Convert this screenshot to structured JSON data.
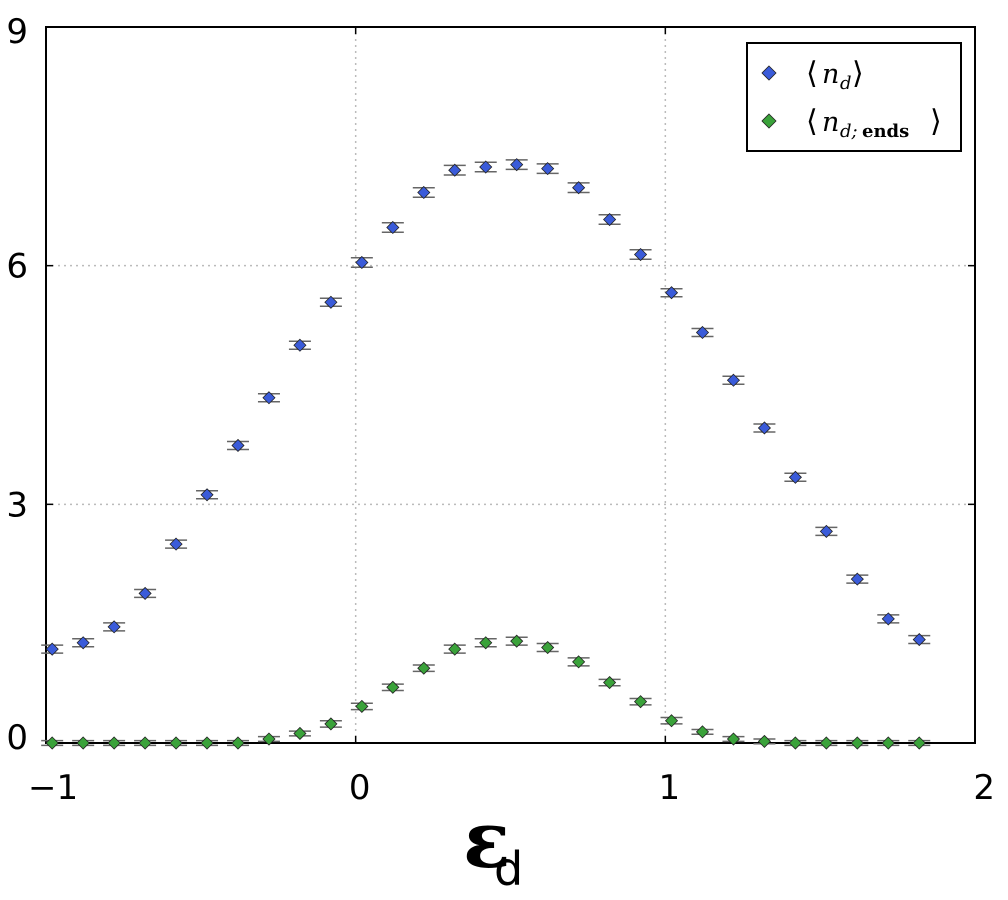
{
  "chart_data": {
    "type": "scatter",
    "xlim": [
      -1,
      2
    ],
    "ylim": [
      0,
      9
    ],
    "x_ticks": [
      "-1",
      "0",
      "1",
      "2"
    ],
    "y_ticks": [
      "0",
      "3",
      "6",
      "9"
    ],
    "x_tick_values": [
      -1,
      0,
      1,
      2
    ],
    "y_tick_values": [
      0,
      3,
      6,
      9
    ],
    "xlabel": "ε",
    "xlabel_subscript": "d",
    "grid": true,
    "legend_position": "top-right",
    "series": [
      {
        "name": "⟨n_d⟩",
        "color": "#3a5bd9",
        "marker": "diamond",
        "x": [
          -0.98,
          -0.88,
          -0.78,
          -0.68,
          -0.58,
          -0.48,
          -0.38,
          -0.28,
          -0.18,
          -0.08,
          0.02,
          0.12,
          0.22,
          0.32,
          0.42,
          0.52,
          0.62,
          0.72,
          0.82,
          0.92,
          1.02,
          1.12,
          1.22,
          1.32,
          1.42,
          1.52,
          1.62,
          1.72,
          1.82
        ],
        "y": [
          1.18,
          1.26,
          1.46,
          1.88,
          2.5,
          3.12,
          3.74,
          4.34,
          5.0,
          5.54,
          6.04,
          6.48,
          6.92,
          7.2,
          7.24,
          7.27,
          7.22,
          6.98,
          6.58,
          6.14,
          5.66,
          5.16,
          4.56,
          3.96,
          3.34,
          2.66,
          2.06,
          1.56,
          1.3
        ],
        "error": [
          0.05,
          0.05,
          0.05,
          0.05,
          0.05,
          0.05,
          0.05,
          0.05,
          0.05,
          0.05,
          0.06,
          0.06,
          0.06,
          0.06,
          0.06,
          0.06,
          0.06,
          0.06,
          0.06,
          0.06,
          0.05,
          0.05,
          0.05,
          0.05,
          0.05,
          0.05,
          0.05,
          0.05,
          0.05
        ]
      },
      {
        "name": "⟨n_{d;ends}⟩",
        "color": "#3aa23a",
        "marker": "diamond",
        "x": [
          -0.98,
          -0.88,
          -0.78,
          -0.68,
          -0.58,
          -0.48,
          -0.38,
          -0.28,
          -0.18,
          -0.08,
          0.02,
          0.12,
          0.22,
          0.32,
          0.42,
          0.52,
          0.62,
          0.72,
          0.82,
          0.92,
          1.02,
          1.12,
          1.22,
          1.32,
          1.42,
          1.52,
          1.62,
          1.72,
          1.82
        ],
        "y": [
          0.0,
          0.0,
          0.0,
          0.0,
          0.0,
          0.0,
          0.0,
          0.05,
          0.12,
          0.24,
          0.46,
          0.7,
          0.94,
          1.18,
          1.26,
          1.28,
          1.2,
          1.02,
          0.76,
          0.52,
          0.28,
          0.14,
          0.05,
          0.02,
          0.0,
          0.0,
          0.0,
          0.0,
          0.0
        ],
        "error": [
          0.03,
          0.03,
          0.03,
          0.03,
          0.03,
          0.03,
          0.03,
          0.03,
          0.03,
          0.04,
          0.04,
          0.04,
          0.04,
          0.05,
          0.05,
          0.05,
          0.05,
          0.05,
          0.04,
          0.04,
          0.04,
          0.03,
          0.03,
          0.03,
          0.03,
          0.03,
          0.03,
          0.03,
          0.03
        ]
      }
    ]
  },
  "legend": {
    "entries": [
      {
        "open": "⟨",
        "main": "n",
        "sub": "d",
        "sub_bold": "",
        "close": "⟩"
      },
      {
        "open": "⟨",
        "main": "n",
        "sub": "d;",
        "sub_bold": "ends",
        "close": "⟩"
      }
    ]
  }
}
